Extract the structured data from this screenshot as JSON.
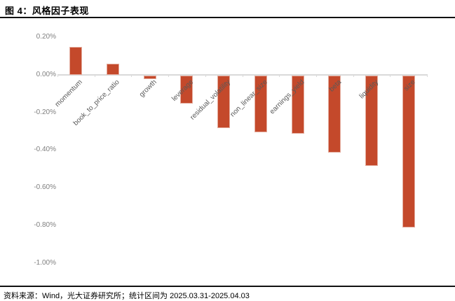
{
  "header": {
    "title": "图 4：风格因子表现"
  },
  "footer": {
    "source": "资料来源：Wind，光大证券研究所；统计区间为 2025.03.31-2025.04.03"
  },
  "colors": {
    "bar": "#C4492B",
    "axis": "#D9D9D9",
    "ytick_label": "#7F7F7F",
    "category_label": "#595959",
    "rule": "#111111"
  },
  "chart_data": {
    "type": "bar",
    "title": "图 4：风格因子表现",
    "xlabel": "",
    "ylabel": "",
    "unit": "%",
    "categories": [
      "momentum",
      "book_to_price_ratio",
      "growth",
      "leverage",
      "residual_volatility",
      "non_linear_size",
      "earnings_yield",
      "beta",
      "liquidity",
      "size"
    ],
    "values": [
      0.15,
      0.06,
      -0.02,
      -0.15,
      -0.28,
      -0.3,
      -0.31,
      -0.41,
      -0.48,
      -0.81
    ],
    "y_ticks": [
      0.2,
      0.0,
      -0.2,
      -0.4,
      -0.6,
      -0.8,
      -1.0
    ],
    "y_tick_labels": [
      "0.20%",
      "0.00%",
      "-0.20%",
      "-0.40%",
      "-0.60%",
      "-0.80%",
      "-1.00%"
    ],
    "ylim": [
      -1.05,
      0.25
    ],
    "grid": false,
    "legend": false
  }
}
